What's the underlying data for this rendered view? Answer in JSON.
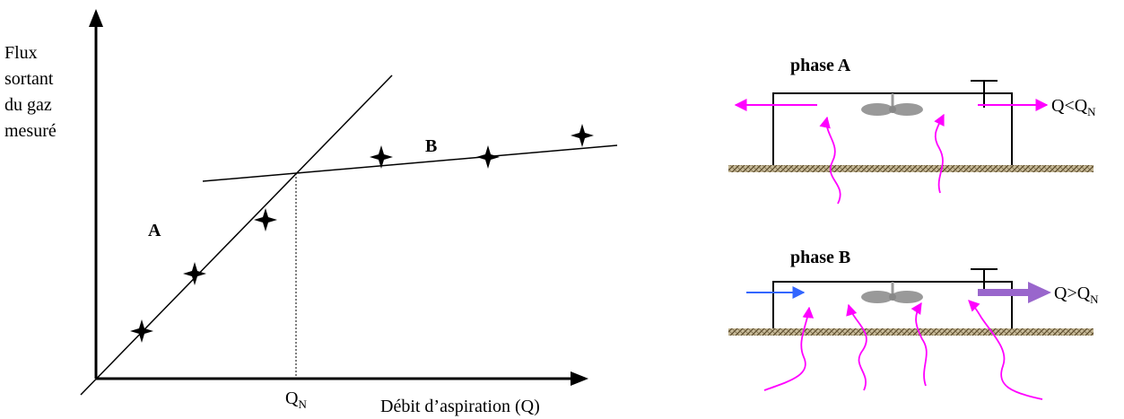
{
  "graph": {
    "ylabel_lines": [
      "Flux",
      "sortant",
      "du gaz",
      "mesuré"
    ],
    "xlabel": "Débit d’aspiration (Q)",
    "qn_main": "Q",
    "qn_sub": "N",
    "region_a": "A",
    "region_b": "B"
  },
  "chambers": {
    "phase_a": {
      "title": "phase A",
      "out_main": "Q<Q",
      "out_sub": "N"
    },
    "phase_b": {
      "title": "phase B",
      "out_main": "Q>Q",
      "out_sub": "N"
    }
  },
  "colors": {
    "line": "#000000",
    "flow_arrow": "#ff00ff",
    "inlet_arrow": "#3366ff",
    "outlet_arrow_b": "#9966cc",
    "fan": "#999999",
    "ground": "#9a8a6a"
  }
}
